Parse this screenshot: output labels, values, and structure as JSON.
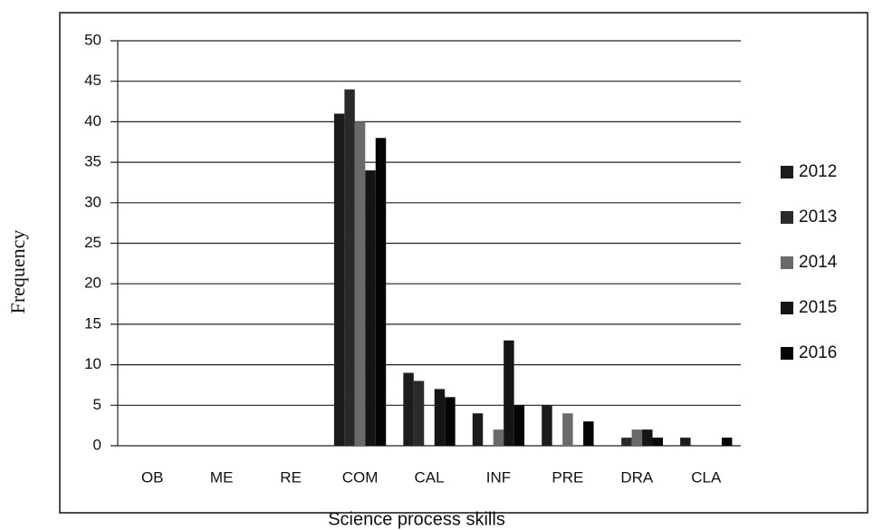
{
  "chart_data": {
    "type": "bar",
    "x_label": "Science process skills",
    "y_label": "Frequency",
    "categories": [
      "OB",
      "ME",
      "RE",
      "COM",
      "CAL",
      "INF",
      "PRE",
      "DRA",
      "CLA"
    ],
    "series": [
      {
        "name": "2012",
        "color": "#1c1c1c",
        "values": [
          0,
          0,
          0,
          41,
          9,
          4,
          5,
          0,
          1
        ]
      },
      {
        "name": "2013",
        "color": "#2a2a2a",
        "values": [
          0,
          0,
          0,
          44,
          8,
          0,
          0,
          1,
          0
        ]
      },
      {
        "name": "2014",
        "color": "#6a6a6a",
        "values": [
          0,
          0,
          0,
          40,
          0,
          2,
          4,
          2,
          0
        ]
      },
      {
        "name": "2015",
        "color": "#151515",
        "values": [
          0,
          0,
          0,
          34,
          7,
          13,
          0,
          2,
          0
        ]
      },
      {
        "name": "2016",
        "color": "#050505",
        "values": [
          0,
          0,
          0,
          38,
          6,
          5,
          3,
          1,
          1
        ]
      }
    ],
    "ylim": [
      0,
      50
    ],
    "yticks": [
      0,
      5,
      10,
      15,
      20,
      25,
      30,
      35,
      40,
      45,
      50
    ],
    "grid": true,
    "legend": "right"
  }
}
